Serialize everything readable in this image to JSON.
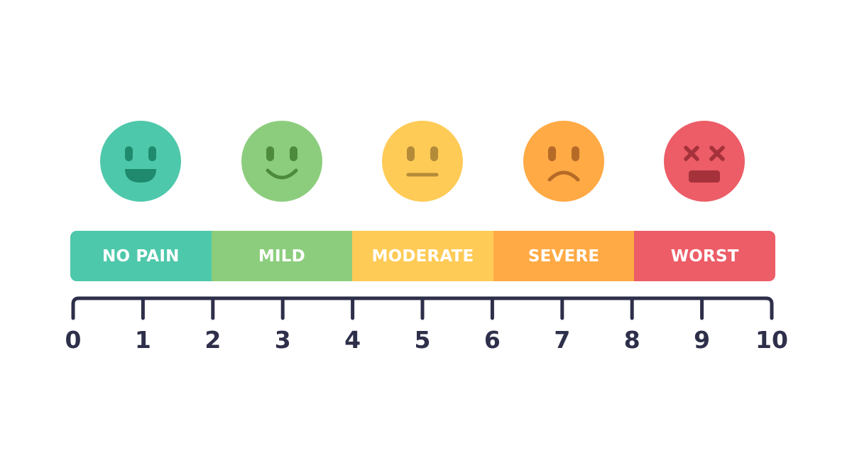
{
  "segments": [
    {
      "label": "NO PAIN",
      "color": "#4ec8aa",
      "face": "big-smile"
    },
    {
      "label": "MILD",
      "color": "#8ccd7d",
      "face": "smile"
    },
    {
      "label": "MODERATE",
      "color": "#ffcb57",
      "face": "neutral"
    },
    {
      "label": "SEVERE",
      "color": "#ffaa45",
      "face": "frown"
    },
    {
      "label": "WORST",
      "color": "#ec5d67",
      "face": "x-eyes"
    }
  ],
  "feature_colors": [
    "#1f8a6d",
    "#4d8a3c",
    "#b48b39",
    "#b56a27",
    "#a5323a"
  ],
  "scale": {
    "min": 0,
    "max": 10,
    "ticks": [
      "0",
      "1",
      "2",
      "3",
      "4",
      "5",
      "6",
      "7",
      "8",
      "9",
      "10"
    ],
    "color": "#2e2f4a"
  }
}
